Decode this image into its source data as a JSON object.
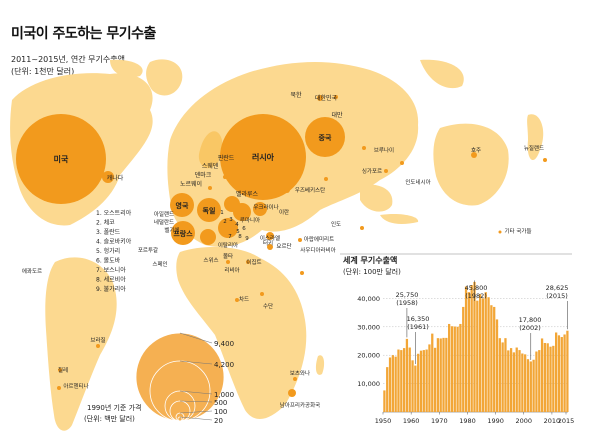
{
  "header": {
    "title": "미국이 주도하는 무기수출",
    "subtitle_line1": "2011~2015년, 연간 무기수출액",
    "subtitle_line2": "(단위: 1천만 달러)"
  },
  "map": {
    "countries": [
      {
        "name": "미국",
        "value": null,
        "label_color": "#ffffff"
      },
      {
        "name": "캐나다"
      },
      {
        "name": "러시아",
        "label_color": "#ffffff"
      },
      {
        "name": "중국",
        "label_color": "#ffffff"
      },
      {
        "name": "북한"
      },
      {
        "name": "대한민국"
      },
      {
        "name": "대만"
      },
      {
        "name": "핀란드"
      },
      {
        "name": "스웨덴"
      },
      {
        "name": "덴마크"
      },
      {
        "name": "노르웨이"
      },
      {
        "name": "벨라루스"
      },
      {
        "name": "영국",
        "label_color": "#ffffff"
      },
      {
        "name": "독일",
        "label_color": "#ffffff"
      },
      {
        "name": "프랑스",
        "label_color": "#ffffff"
      },
      {
        "name": "아일랜드"
      },
      {
        "name": "네덜란드"
      },
      {
        "name": "벨기에"
      },
      {
        "name": "포르투갈"
      },
      {
        "name": "스페인"
      },
      {
        "name": "스위스"
      },
      {
        "name": "이탈리아"
      },
      {
        "name": "몰타"
      },
      {
        "name": "리비아"
      },
      {
        "name": "이집트"
      },
      {
        "name": "터키"
      },
      {
        "name": "이스라엘"
      },
      {
        "name": "요르단"
      },
      {
        "name": "우크라이나"
      },
      {
        "name": "루마니아"
      },
      {
        "name": "우즈베키스탄"
      },
      {
        "name": "이란"
      },
      {
        "name": "아랍에미리트"
      },
      {
        "name": "사우디아라비아"
      },
      {
        "name": "수단"
      },
      {
        "name": "차드"
      },
      {
        "name": "인도"
      },
      {
        "name": "싱가포르"
      },
      {
        "name": "인도네시아"
      },
      {
        "name": "브루나이"
      },
      {
        "name": "호주"
      },
      {
        "name": "뉴질랜드"
      },
      {
        "name": "에콰도르"
      },
      {
        "name": "브라질"
      },
      {
        "name": "칠레"
      },
      {
        "name": "아르헨티나"
      },
      {
        "name": "보츠와나"
      },
      {
        "name": "남아프리카공화국"
      }
    ],
    "small_legend": [
      "1. 오스트리아",
      "2. 체코",
      "3. 폴란드",
      "4. 슬로바키아",
      "5. 헝가리",
      "6. 몰도바",
      "7. 보스니아",
      "8. 세르비아",
      "9. 불가리아"
    ],
    "other_label": "기타 국가들",
    "cluster_numbers": [
      "1",
      "2",
      "3",
      "4",
      "5",
      "6",
      "7",
      "8",
      "9"
    ]
  },
  "size_legend": {
    "caption_line1": "1990년 기준 가격",
    "caption_line2": "(단위: 백만 달러)",
    "values": [
      "9,400",
      "4,200",
      "1,000",
      "500",
      "100",
      "20"
    ]
  },
  "chart_data": {
    "type": "bar",
    "title": "세계 무기수출액",
    "subtitle": "(단위: 100만 달러)",
    "xlabel": "",
    "ylabel": "",
    "x_ticks": [
      "1950",
      "1960",
      "1970",
      "1980",
      "1990",
      "2000",
      "2010",
      "2015"
    ],
    "y_ticks": [
      "10,000",
      "20,000",
      "30,000",
      "40,000"
    ],
    "ylim": [
      0,
      50000
    ],
    "xlim": [
      1950,
      2015
    ],
    "grid": true,
    "years": [
      1950,
      1951,
      1952,
      1953,
      1954,
      1955,
      1956,
      1957,
      1958,
      1959,
      1960,
      1961,
      1962,
      1963,
      1964,
      1965,
      1966,
      1967,
      1968,
      1969,
      1970,
      1971,
      1972,
      1973,
      1974,
      1975,
      1976,
      1977,
      1978,
      1979,
      1980,
      1981,
      1982,
      1983,
      1984,
      1985,
      1986,
      1987,
      1988,
      1989,
      1990,
      1991,
      1992,
      1993,
      1994,
      1995,
      1996,
      1997,
      1998,
      1999,
      2000,
      2001,
      2002,
      2003,
      2004,
      2005,
      2006,
      2007,
      2008,
      2009,
      2010,
      2011,
      2012,
      2013,
      2014,
      2015
    ],
    "values": [
      7600,
      15800,
      19200,
      20000,
      19500,
      22000,
      21800,
      22500,
      25750,
      22700,
      18200,
      16350,
      20500,
      21600,
      21800,
      22000,
      23800,
      27600,
      22600,
      26000,
      25900,
      26100,
      26100,
      31000,
      30200,
      30100,
      30000,
      31000,
      37000,
      44200,
      42200,
      44700,
      45800,
      39200,
      41500,
      40000,
      42200,
      40400,
      37600,
      37000,
      32600,
      26000,
      24500,
      26000,
      21700,
      22500,
      21000,
      22700,
      21800,
      20600,
      20300,
      18600,
      17800,
      18400,
      21300,
      21800,
      25900,
      24300,
      24200,
      23000,
      23300,
      28000,
      27000,
      26400,
      27300,
      28625
    ],
    "annotations": [
      {
        "value": "25,750",
        "year": "(1958)"
      },
      {
        "value": "16,350",
        "year": "(1961)"
      },
      {
        "value": "45,800",
        "year": "(1982)"
      },
      {
        "value": "17,800",
        "year": "(2002)"
      },
      {
        "value": "28,625",
        "year": "(2015)"
      }
    ],
    "colors": {
      "bar": "#f2a637",
      "grid": "#bbbbbb",
      "annotation": "#333333"
    }
  },
  "colors": {
    "land": "#fcd990",
    "land_dark": "#f9c765",
    "bubble": "#f29a1d",
    "bubble_light": "#f5b052",
    "sea": "#ffffff"
  }
}
